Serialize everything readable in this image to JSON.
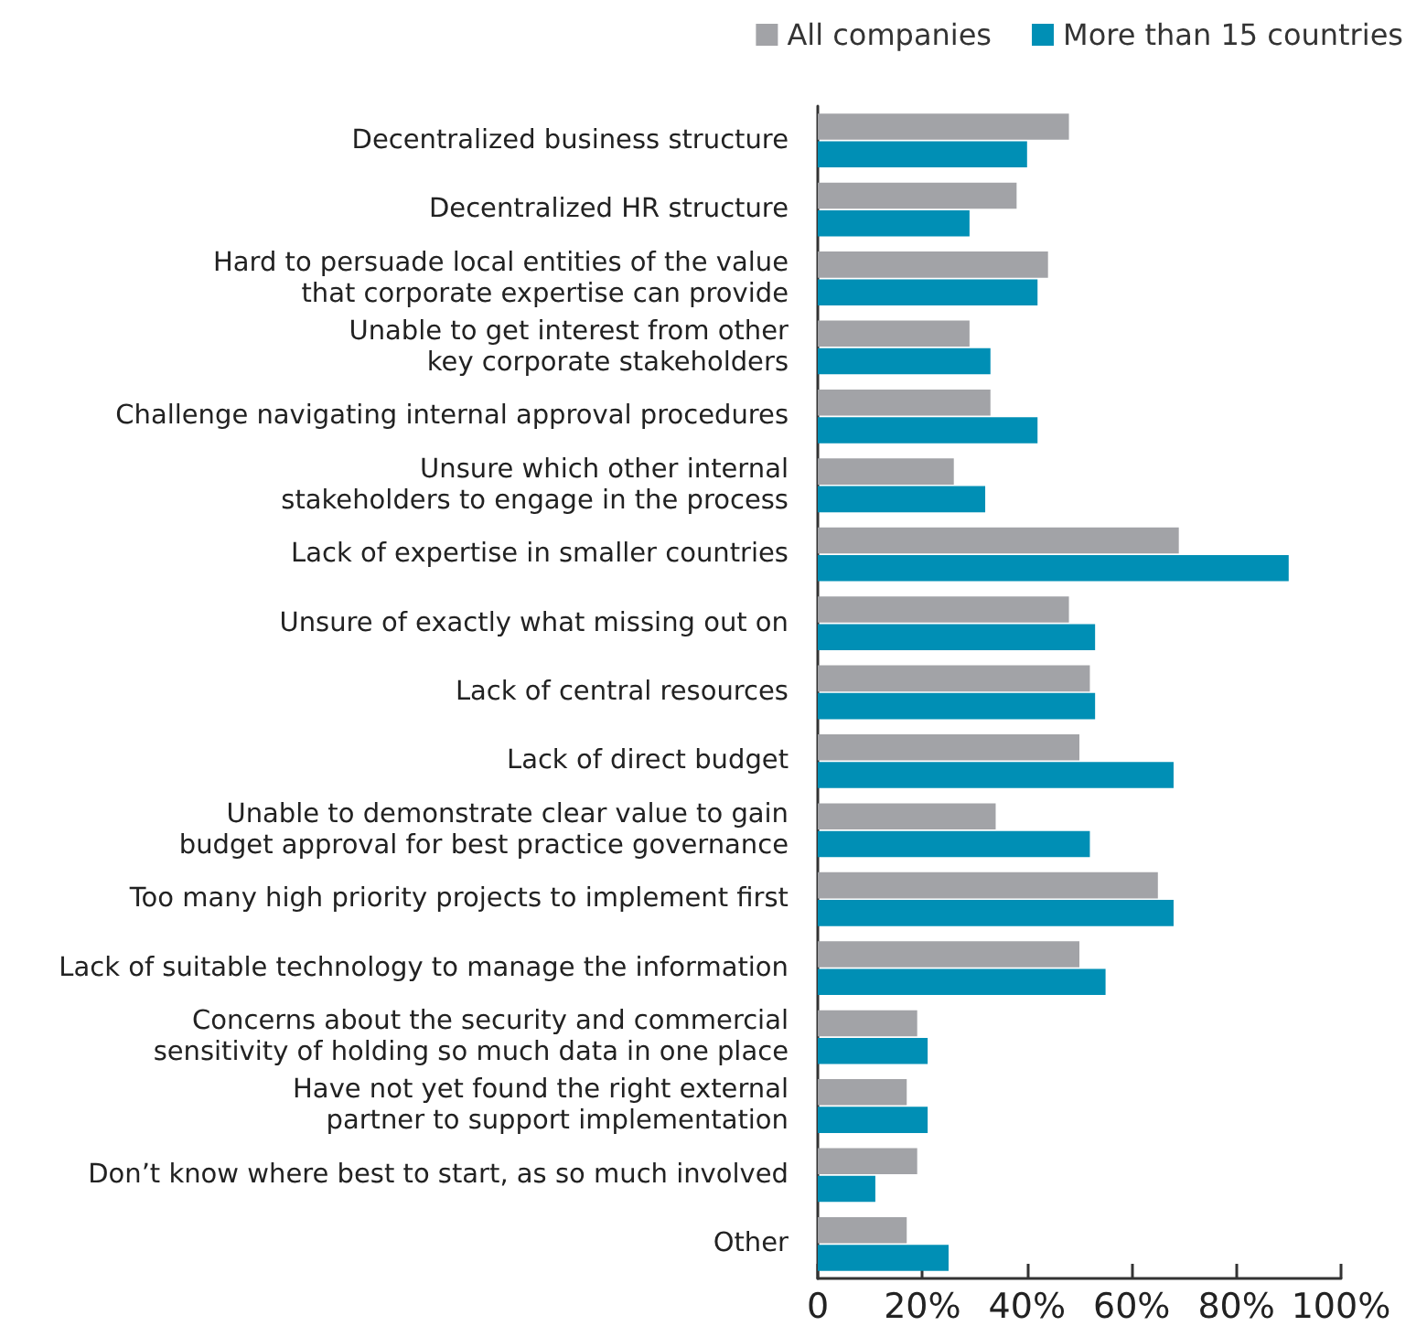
{
  "chart_data": {
    "type": "bar",
    "orientation": "horizontal",
    "categories": [
      "Decentralized business structure",
      "Decentralized HR structure",
      "Hard to persuade local entities of the value\nthat corporate expertise can provide",
      "Unable to get interest from other\nkey corporate stakeholders",
      "Challenge navigating internal approval procedures",
      "Unsure which other internal\nstakeholders to engage in the process",
      "Lack of expertise in smaller countries",
      "Unsure of exactly what missing out on",
      "Lack of central resources",
      "Lack of direct budget",
      "Unable to demonstrate clear value to gain\nbudget approval for best practice governance",
      "Too many high priority projects to implement first",
      "Lack of suitable technology to manage the information",
      "Concerns about the security and commercial\nsensitivity of holding so much data in one place",
      "Have not yet found the right external\npartner to support implementation",
      "Don’t know where best to start, as so much involved",
      "Other"
    ],
    "series": [
      {
        "name": "All companies",
        "color": "#a2a3a7",
        "values": [
          48,
          38,
          44,
          29,
          33,
          26,
          69,
          48,
          52,
          50,
          34,
          65,
          50,
          19,
          17,
          19,
          17
        ]
      },
      {
        "name": "More than 15 countries",
        "color": "#008fb5",
        "values": [
          40,
          29,
          42,
          33,
          42,
          32,
          90,
          53,
          53,
          68,
          52,
          68,
          55,
          21,
          21,
          11,
          25
        ]
      }
    ],
    "xlim": [
      0,
      100
    ],
    "xticks": [
      0,
      {
        "value": 20,
        "label": "20%"
      },
      {
        "value": 40,
        "label": "40%"
      },
      {
        "value": 60,
        "label": "60%"
      },
      {
        "value": 80,
        "label": "80%"
      },
      {
        "value": 100,
        "label": "100%"
      }
    ],
    "grid": false,
    "legend": "top right"
  }
}
